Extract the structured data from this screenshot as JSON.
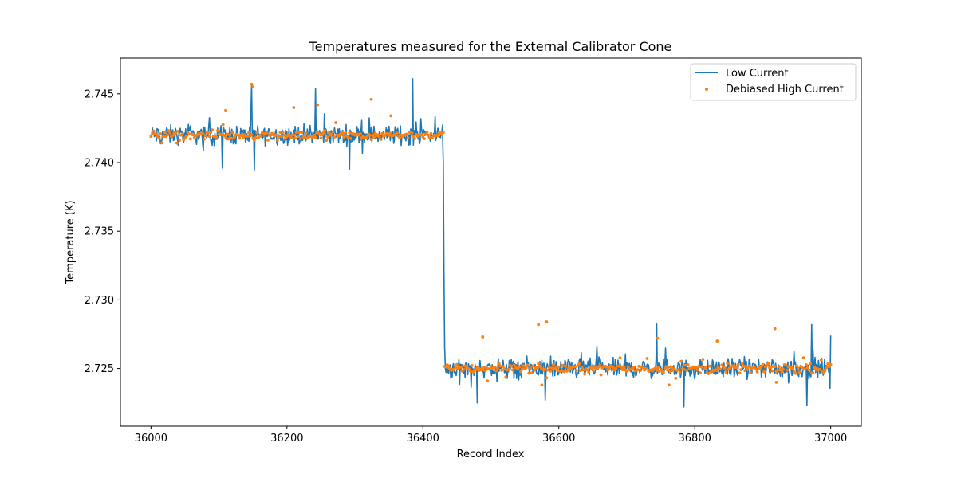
{
  "chart_data": {
    "type": "line",
    "title": "Temperatures measured for the External Calibrator Cone",
    "xlabel": "Record Index",
    "ylabel": "Temperature (K)",
    "xlim": [
      35955,
      37045
    ],
    "ylim": [
      2.7208,
      2.7476
    ],
    "x_ticks": [
      36000,
      36200,
      36400,
      36600,
      36800,
      37000
    ],
    "y_ticks": [
      2.725,
      2.73,
      2.735,
      2.74,
      2.745
    ],
    "legend": {
      "position": "top-right",
      "entries": [
        {
          "label": "Low Current",
          "series": "low_current"
        },
        {
          "label": "Debiased High Current",
          "series": "debiased_high_current"
        }
      ]
    },
    "series": [
      {
        "name": "Low Current",
        "key": "low_current",
        "kind": "line",
        "color": "#1f77b4",
        "segments": [
          {
            "x_start": 36000,
            "x_end": 36429,
            "baseline": 2.742,
            "noise": 0.001
          },
          {
            "x_start": 36433,
            "x_end": 37000,
            "baseline": 2.725,
            "noise": 0.001
          }
        ],
        "transition": {
          "x": [
            36429,
            36430,
            36431,
            36432,
            36433
          ],
          "y": [
            2.742,
            2.74,
            2.732,
            2.7265,
            2.7252
          ]
        },
        "spikes": [
          {
            "x": 36148,
            "y": 2.7456
          },
          {
            "x": 36152,
            "y": 2.7394
          },
          {
            "x": 36242,
            "y": 2.7454
          },
          {
            "x": 36385,
            "y": 2.7461
          },
          {
            "x": 36292,
            "y": 2.7395
          },
          {
            "x": 36105,
            "y": 2.7396
          },
          {
            "x": 36744,
            "y": 2.7283
          },
          {
            "x": 36784,
            "y": 2.7222
          },
          {
            "x": 36972,
            "y": 2.7282
          },
          {
            "x": 36965,
            "y": 2.7223
          },
          {
            "x": 36580,
            "y": 2.7227
          },
          {
            "x": 36480,
            "y": 2.7225
          },
          {
            "x": 37000,
            "y": 2.7274
          }
        ]
      },
      {
        "name": "Debiased High Current",
        "key": "debiased_high_current",
        "kind": "scatter",
        "color": "#ff7f0e",
        "segments": [
          {
            "x_start": 36000,
            "x_end": 36430,
            "baseline": 2.742,
            "noise": 0.00045,
            "step": 2
          },
          {
            "x_start": 36432,
            "x_end": 37000,
            "baseline": 2.725,
            "noise": 0.00045,
            "step": 2
          }
        ],
        "outliers": [
          {
            "x": 36148,
            "y": 2.7457
          },
          {
            "x": 36150,
            "y": 2.7455
          },
          {
            "x": 36324,
            "y": 2.7446
          },
          {
            "x": 36245,
            "y": 2.7442
          },
          {
            "x": 36210,
            "y": 2.744
          },
          {
            "x": 36110,
            "y": 2.7438
          },
          {
            "x": 36353,
            "y": 2.7434
          },
          {
            "x": 36488,
            "y": 2.7273
          },
          {
            "x": 36570,
            "y": 2.7282
          },
          {
            "x": 36582,
            "y": 2.7284
          },
          {
            "x": 36918,
            "y": 2.7279
          },
          {
            "x": 36745,
            "y": 2.7272
          },
          {
            "x": 36833,
            "y": 2.727
          },
          {
            "x": 36575,
            "y": 2.7238
          },
          {
            "x": 36920,
            "y": 2.724
          },
          {
            "x": 36495,
            "y": 2.7241
          },
          {
            "x": 36762,
            "y": 2.7238
          }
        ]
      }
    ]
  }
}
